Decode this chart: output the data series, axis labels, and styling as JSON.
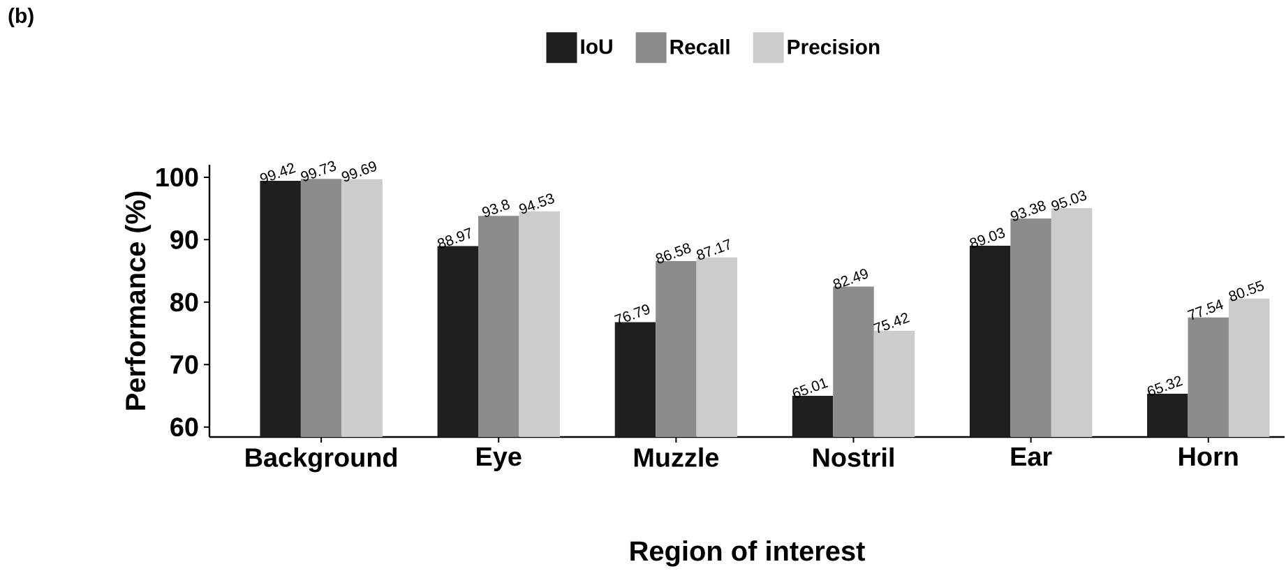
{
  "chart_data": {
    "type": "bar",
    "xlabel": "Region of interest",
    "ylabel": "Performance (%)",
    "annotations": [
      "(b)"
    ],
    "categories": [
      "Background",
      "Eye",
      "Muzzle",
      "Nostril",
      "Ear",
      "Horn"
    ],
    "series": [
      {
        "name": "IoU",
        "color": "#1f1f1f",
        "values": [
          99.42,
          88.97,
          76.79,
          65.01,
          89.03,
          65.32
        ]
      },
      {
        "name": "Recall",
        "color": "#8c8c8c",
        "values": [
          99.73,
          93.8,
          86.58,
          82.49,
          93.38,
          77.54
        ]
      },
      {
        "name": "Precision",
        "color": "#cccccc",
        "values": [
          99.69,
          94.53,
          87.17,
          75.42,
          95.03,
          80.55
        ]
      }
    ],
    "ylim": [
      58.4,
      102
    ],
    "yticks": [
      60,
      70,
      80,
      90,
      100
    ],
    "data_labels": true,
    "legend": "top",
    "grid": false
  }
}
